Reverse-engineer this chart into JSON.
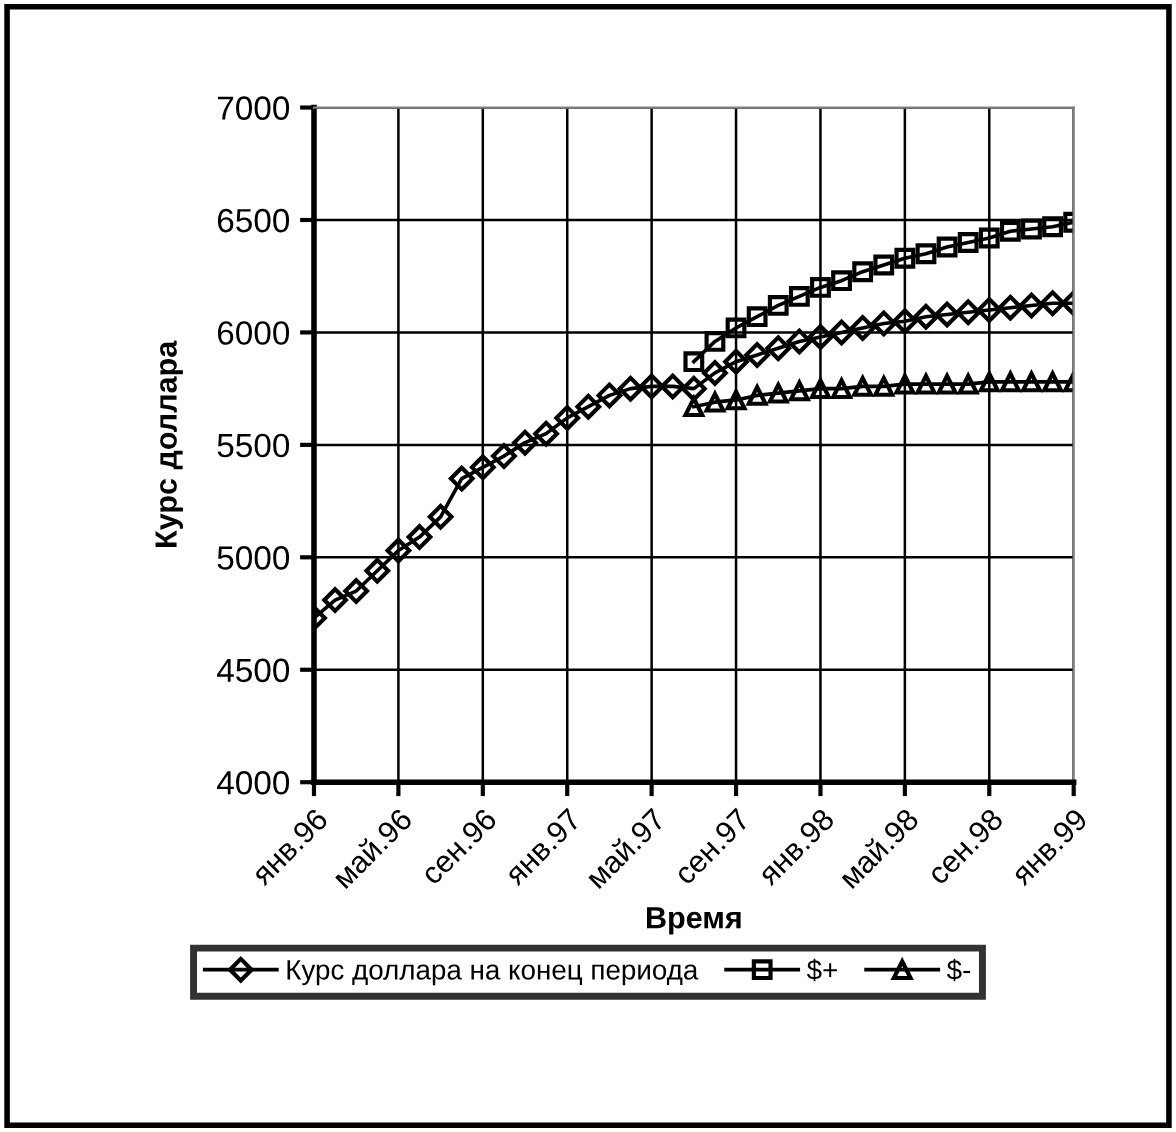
{
  "chart_data": {
    "type": "line",
    "xlabel": "Время",
    "ylabel": "Курс доллара",
    "categories": [
      "янв.96",
      null,
      null,
      null,
      "май.96",
      null,
      null,
      null,
      "сен.96",
      null,
      null,
      null,
      "янв.97",
      null,
      null,
      null,
      "май.97",
      null,
      null,
      null,
      "сен.97",
      null,
      null,
      null,
      "янв.98",
      null,
      null,
      null,
      "май.98",
      null,
      null,
      null,
      "сен.98",
      null,
      null,
      null,
      "янв.99"
    ],
    "series": [
      {
        "name": "Курс доллара на конец периода",
        "color": "#000000",
        "marker": "diamond",
        "values": [
          4730,
          4810,
          4850,
          4940,
          5030,
          5090,
          5180,
          5350,
          5400,
          5450,
          5510,
          5550,
          5620,
          5670,
          5720,
          5750,
          5760,
          5760,
          5750,
          5820,
          5870,
          5900,
          5930,
          5960,
          5980,
          6000,
          6020,
          6040,
          6050,
          6070,
          6080,
          6090,
          6100,
          6110,
          6120,
          6130,
          6130
        ]
      },
      {
        "name": "$+",
        "color": "#000000",
        "marker": "square",
        "values": [
          null,
          null,
          null,
          null,
          null,
          null,
          null,
          null,
          null,
          null,
          null,
          null,
          null,
          null,
          null,
          null,
          null,
          null,
          5870,
          5960,
          6020,
          6070,
          6120,
          6160,
          6200,
          6230,
          6270,
          6300,
          6330,
          6350,
          6380,
          6400,
          6420,
          6450,
          6460,
          6470,
          6490
        ]
      },
      {
        "name": "$-",
        "color": "#000000",
        "marker": "triangle",
        "values": [
          null,
          null,
          null,
          null,
          null,
          null,
          null,
          null,
          null,
          null,
          null,
          null,
          null,
          null,
          null,
          null,
          null,
          null,
          5670,
          5690,
          5700,
          5720,
          5730,
          5740,
          5750,
          5750,
          5760,
          5760,
          5770,
          5770,
          5770,
          5770,
          5780,
          5780,
          5780,
          5780,
          5780
        ]
      }
    ],
    "ylim": [
      4000,
      7000
    ],
    "yticks": [
      4000,
      4500,
      5000,
      5500,
      6000,
      6500,
      7000
    ],
    "grid": true,
    "legend": "bottom",
    "line_style": "solid"
  }
}
